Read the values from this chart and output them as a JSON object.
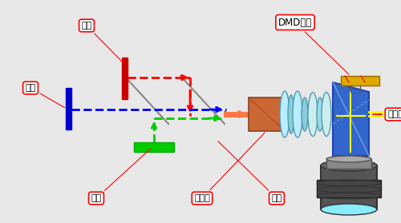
{
  "bg_color": "#e8e8e8",
  "labels": {
    "red": "红色",
    "blue": "蓝色",
    "green": "绿色",
    "condenser": "聚光管",
    "lens": "透镜",
    "dmd": "DMD芯片",
    "prism": "棱　镜"
  },
  "fig_w": 5.0,
  "fig_h": 2.79
}
